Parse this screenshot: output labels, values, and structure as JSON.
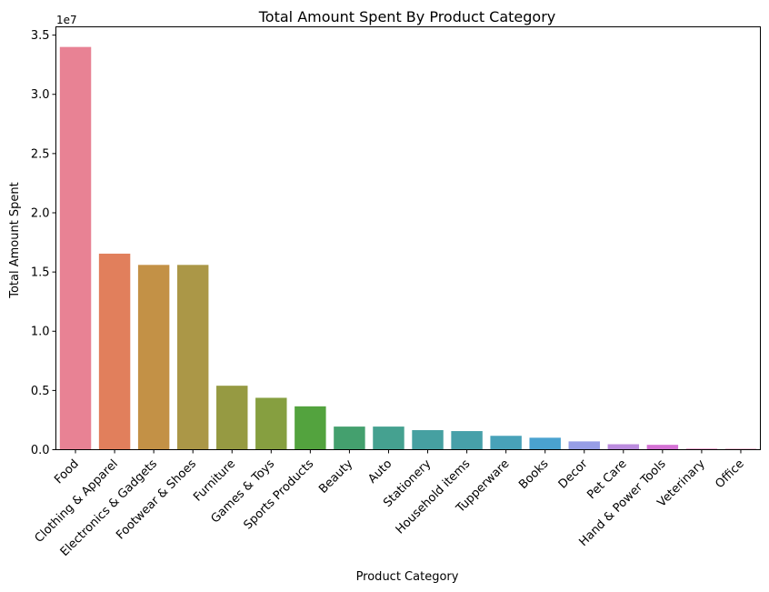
{
  "chart_data": {
    "type": "bar",
    "title": "Total Amount Spent By Product Category",
    "xlabel": "Product Category",
    "ylabel": "Total Amount Spent",
    "y_offset_label": "1e7",
    "ylim": [
      0,
      35700000
    ],
    "y_ticks": [
      0,
      5000000,
      10000000,
      15000000,
      20000000,
      25000000,
      30000000,
      35000000
    ],
    "y_tick_labels": [
      "0.0",
      "0.5",
      "1.0",
      "1.5",
      "2.0",
      "2.5",
      "3.0",
      "3.5"
    ],
    "grid": false,
    "legend": "none",
    "categories": [
      "Food",
      "Clothing & Apparel",
      "Electronics & Gadgets",
      "Footwear & Shoes",
      "Furniture",
      "Games & Toys",
      "Sports Products",
      "Beauty",
      "Auto",
      "Stationery",
      "Household items",
      "Tupperware",
      "Books",
      "Decor",
      "Pet Care",
      "Hand & Power Tools",
      "Veterinary",
      "Office"
    ],
    "values": [
      34000000,
      16550000,
      15600000,
      15600000,
      5400000,
      4380000,
      3660000,
      1950000,
      1950000,
      1650000,
      1570000,
      1170000,
      1010000,
      700000,
      460000,
      410000,
      80000,
      70000
    ],
    "colors": [
      "#e88294",
      "#e17f5c",
      "#c39146",
      "#ab9747",
      "#969a42",
      "#869f40",
      "#53a33e",
      "#44a06e",
      "#45a190",
      "#46a0a1",
      "#47a0a9",
      "#48a2b9",
      "#4aa2d0",
      "#979ee6",
      "#bb8cde",
      "#d472d4",
      "#e36bb0",
      "#e76f9b"
    ]
  }
}
